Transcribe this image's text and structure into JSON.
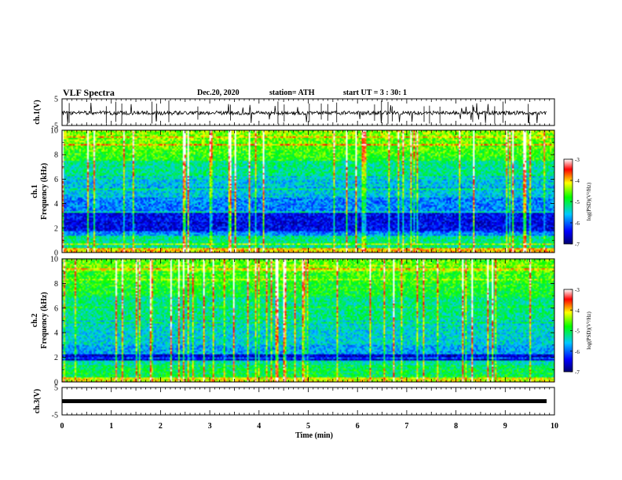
{
  "header": {
    "title": "VLF Spectra",
    "date": "Dec.20, 2020",
    "station": "station= ATH",
    "start": "start  UT =  3 : 30: 1"
  },
  "chart_data": [
    {
      "type": "line",
      "panel": "ch1-waveform",
      "ylabel": "ch.1(V)",
      "ylim": [
        -5,
        5
      ],
      "yticks": [
        "5",
        "-5"
      ],
      "xlim": [
        0,
        10
      ]
    },
    {
      "type": "heatmap",
      "panel": "ch1-spectrogram",
      "ylabel": "ch.1\nFrequency  (kHz)",
      "ylim": [
        0,
        10
      ],
      "yticks": [
        "0",
        "2",
        "4",
        "6",
        "8",
        "10"
      ],
      "xlim": [
        0,
        10
      ],
      "colorbar": {
        "label": "log(PSD)(V²/Hz)",
        "range": [
          -7,
          -3
        ],
        "ticks": [
          "-3",
          "-4",
          "-5",
          "-6",
          "-7"
        ]
      }
    },
    {
      "type": "heatmap",
      "panel": "ch2-spectrogram",
      "ylabel": "ch.2\nFrequency  (kHz)",
      "ylim": [
        0,
        10
      ],
      "yticks": [
        "0",
        "2",
        "4",
        "6",
        "8",
        "10"
      ],
      "xlim": [
        0,
        10
      ],
      "colorbar": {
        "label": "log(PSD)(V²/Hz)",
        "range": [
          -7,
          -3
        ],
        "ticks": [
          "-3",
          "-4",
          "-5",
          "-6",
          "-7"
        ]
      }
    },
    {
      "type": "line",
      "panel": "ch3-waveform",
      "ylabel": "ch.3(V)",
      "ylim": [
        -5,
        5
      ],
      "yticks": [
        "5",
        "-5"
      ],
      "xlim": [
        0,
        10
      ],
      "xlabel": "Time  (min)",
      "xticks": [
        "0",
        "1",
        "2",
        "3",
        "4",
        "5",
        "6",
        "7",
        "8",
        "9",
        "10"
      ]
    }
  ]
}
